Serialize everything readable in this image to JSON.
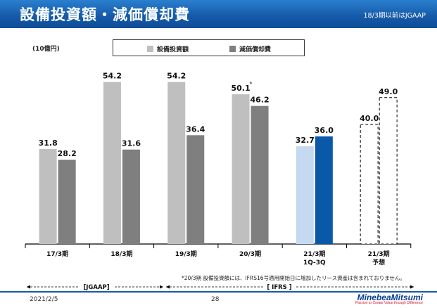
{
  "header": {
    "title": "設備投資額・減価償却費",
    "note": "18/3期以前はJGAAP"
  },
  "unit_label": "(10億円)",
  "legend": [
    {
      "label": "設備投資額",
      "color": "#bfbfbf"
    },
    {
      "label": "減価償却費",
      "color": "#7f7f7f"
    }
  ],
  "chart_data": {
    "type": "bar",
    "title": "設備投資額・減価償却費",
    "ylabel": "(10億円)",
    "ylim": [
      0,
      60
    ],
    "categories": [
      "17/3期",
      "18/3期",
      "19/3期",
      "20/3期",
      "21/3期\n1Q-3Q",
      "21/3期\n予想"
    ],
    "series": [
      {
        "name": "設備投資額",
        "values": [
          31.8,
          54.2,
          54.2,
          50.1,
          32.7,
          40.0
        ],
        "labels": [
          "31.8",
          "54.2",
          "54.2",
          "50.1",
          "32.7",
          "40.0"
        ]
      },
      {
        "name": "減価償却費",
        "values": [
          28.2,
          31.6,
          36.4,
          46.2,
          36.0,
          49.0
        ],
        "labels": [
          "28.2",
          "31.6",
          "36.4",
          "46.2",
          "36.0",
          "49.0"
        ]
      }
    ],
    "styles": {
      "actual": [
        "#bfbfbf",
        "#7f7f7f"
      ],
      "q1q3": [
        "#c5d9f1",
        "#0a58a8"
      ],
      "forecast": "dashed"
    },
    "annotations": [
      {
        "category": "20/3期",
        "series": "設備投資額",
        "text": "*"
      }
    ]
  },
  "periods": {
    "jgaap": "[JGAAP]",
    "ifrs": "[ IFRS ]"
  },
  "footnote": "*20/3期 設備投資額には、IFRS16号適用開始日に増加したリース資産は含まれておりません。",
  "footer": {
    "date": "2021/2/5",
    "page": "28",
    "logo": "MinebeaMitsumi",
    "tagline": "Passion to Create Value through Difference"
  }
}
